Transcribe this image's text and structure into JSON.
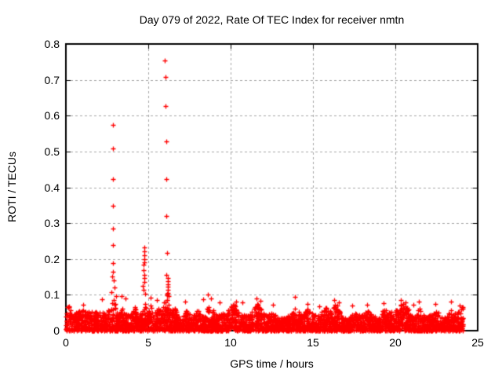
{
  "figure": {
    "background": "#ffffff",
    "text_color": "#000000"
  },
  "chart_data": {
    "type": "scatter",
    "title": "Day 079 of 2022, Rate Of TEC Index for receiver nmtn",
    "xlabel": "GPS time / hours",
    "ylabel": "ROTI / TECUs",
    "xlim": [
      0,
      25
    ],
    "ylim": [
      0,
      0.8
    ],
    "xtick_values": [
      0,
      5,
      10,
      15,
      20,
      25
    ],
    "xtick_labels": [
      "0",
      "5",
      "10",
      "15",
      "20",
      "25"
    ],
    "ytick_values": [
      0,
      0.1,
      0.2,
      0.3,
      0.4,
      0.5,
      0.6,
      0.7,
      0.8
    ],
    "ytick_labels": [
      "0",
      "0.1",
      "0.2",
      "0.3",
      "0.4",
      "0.5",
      "0.6",
      "0.7",
      "0.8"
    ],
    "grid": {
      "show": true,
      "color": "#a6a6a6",
      "dash": [
        3,
        3
      ]
    },
    "frame_color": "#000000",
    "tick_length": 6,
    "marker": {
      "shape": "plus",
      "size": 7,
      "color": "#ff0000"
    },
    "series_name": "ROTI",
    "spike_points": [
      [
        2.86,
        0.574
      ],
      [
        2.86,
        0.509
      ],
      [
        2.86,
        0.424
      ],
      [
        2.87,
        0.348
      ],
      [
        2.87,
        0.285
      ],
      [
        2.86,
        0.239
      ],
      [
        2.87,
        0.188
      ],
      [
        2.86,
        0.165
      ],
      [
        2.8,
        0.152
      ],
      [
        2.9,
        0.14
      ],
      [
        2.96,
        0.12
      ],
      [
        2.76,
        0.108
      ],
      [
        3.04,
        0.097
      ],
      [
        4.74,
        0.233
      ],
      [
        4.74,
        0.222
      ],
      [
        4.74,
        0.211
      ],
      [
        4.75,
        0.2
      ],
      [
        4.74,
        0.191
      ],
      [
        4.7,
        0.185
      ],
      [
        4.73,
        0.168
      ],
      [
        4.74,
        0.156
      ],
      [
        4.75,
        0.147
      ],
      [
        4.74,
        0.136
      ],
      [
        4.67,
        0.124
      ],
      [
        4.73,
        0.113
      ],
      [
        4.8,
        0.104
      ],
      [
        6.0,
        0.755
      ],
      [
        6.05,
        0.707
      ],
      [
        6.05,
        0.627
      ],
      [
        6.08,
        0.529
      ],
      [
        6.08,
        0.423
      ],
      [
        6.08,
        0.32
      ],
      [
        6.13,
        0.216
      ],
      [
        6.1,
        0.155
      ],
      [
        6.19,
        0.146
      ],
      [
        6.19,
        0.138
      ],
      [
        6.2,
        0.13
      ],
      [
        6.19,
        0.122
      ],
      [
        6.18,
        0.114
      ],
      [
        6.2,
        0.106
      ],
      [
        6.22,
        0.097
      ],
      [
        0.15,
        0.066
      ],
      [
        1.05,
        0.072
      ],
      [
        2.2,
        0.088
      ],
      [
        3.4,
        0.096
      ],
      [
        3.62,
        0.09
      ],
      [
        5.15,
        0.092
      ],
      [
        5.5,
        0.085
      ],
      [
        7.25,
        0.082
      ],
      [
        8.35,
        0.088
      ],
      [
        8.62,
        0.1
      ],
      [
        8.8,
        0.09
      ],
      [
        9.35,
        0.078
      ],
      [
        10.35,
        0.082
      ],
      [
        10.7,
        0.078
      ],
      [
        11.55,
        0.09
      ],
      [
        11.8,
        0.084
      ],
      [
        12.55,
        0.072
      ],
      [
        13.9,
        0.095
      ],
      [
        14.65,
        0.075
      ],
      [
        15.4,
        0.068
      ],
      [
        16.3,
        0.085
      ],
      [
        16.55,
        0.08
      ],
      [
        17.4,
        0.07
      ],
      [
        18.3,
        0.072
      ],
      [
        19.3,
        0.076
      ],
      [
        20.35,
        0.085
      ],
      [
        20.6,
        0.078
      ],
      [
        21.1,
        0.073
      ],
      [
        21.45,
        0.081
      ],
      [
        22.43,
        0.075
      ],
      [
        23.38,
        0.082
      ],
      [
        23.9,
        0.07
      ],
      [
        24.05,
        0.065
      ]
    ],
    "baseline_noise": {
      "description": "Dense band of ROTI samples between 0 and ~0.06 TECUs across 0-24.1 h with locally enhanced activity near 2.9, 4.7, 6.1, 8.6, 11.6, 16.4 and 20.5 h",
      "n_points": 3600,
      "x_range": [
        0,
        24.12
      ],
      "value_exponent": 1.55,
      "envelope_base": 0.045,
      "envelope_min": 0.03,
      "seed": 79,
      "wiggles": [
        {
          "amp": 0.006,
          "freq": 1.3,
          "phase": 0.7
        },
        {
          "amp": 0.005,
          "freq": 3.1,
          "phase": 2.1
        }
      ],
      "bumps": [
        {
          "x": 0.15,
          "amp": 0.018,
          "w": 0.1
        },
        {
          "x": 1.0,
          "amp": 0.012,
          "w": 0.25
        },
        {
          "x": 2.05,
          "amp": 0.008,
          "w": 0.2
        },
        {
          "x": 2.55,
          "amp": 0.02,
          "w": 0.15
        },
        {
          "x": 2.9,
          "amp": 0.055,
          "w": 0.12
        },
        {
          "x": 3.4,
          "amp": 0.022,
          "w": 0.12
        },
        {
          "x": 4.2,
          "amp": 0.02,
          "w": 0.1
        },
        {
          "x": 4.75,
          "amp": 0.04,
          "w": 0.1
        },
        {
          "x": 5.15,
          "amp": 0.025,
          "w": 0.12
        },
        {
          "x": 5.55,
          "amp": 0.02,
          "w": 0.1
        },
        {
          "x": 6.08,
          "amp": 0.055,
          "w": 0.12
        },
        {
          "x": 6.6,
          "amp": 0.022,
          "w": 0.12
        },
        {
          "x": 7.3,
          "amp": 0.02,
          "w": 0.12
        },
        {
          "x": 8.0,
          "amp": 0.018,
          "w": 0.1
        },
        {
          "x": 8.6,
          "amp": 0.035,
          "w": 0.1
        },
        {
          "x": 9.0,
          "amp": 0.02,
          "w": 0.1
        },
        {
          "x": 10.2,
          "amp": 0.022,
          "w": 0.2
        },
        {
          "x": 11.6,
          "amp": 0.028,
          "w": 0.2
        },
        {
          "x": 12.6,
          "amp": 0.015,
          "w": 0.15
        },
        {
          "x": 13.9,
          "amp": 0.022,
          "w": 0.1
        },
        {
          "x": 14.7,
          "amp": 0.015,
          "w": 0.12
        },
        {
          "x": 15.8,
          "amp": 0.012,
          "w": 0.15
        },
        {
          "x": 16.4,
          "amp": 0.026,
          "w": 0.18
        },
        {
          "x": 17.5,
          "amp": 0.012,
          "w": 0.15
        },
        {
          "x": 18.3,
          "amp": 0.015,
          "w": 0.12
        },
        {
          "x": 19.3,
          "amp": 0.018,
          "w": 0.12
        },
        {
          "x": 20.5,
          "amp": 0.026,
          "w": 0.25
        },
        {
          "x": 21.4,
          "amp": 0.022,
          "w": 0.15
        },
        {
          "x": 22.5,
          "amp": 0.015,
          "w": 0.15
        },
        {
          "x": 23.4,
          "amp": 0.02,
          "w": 0.15
        },
        {
          "x": 24.0,
          "amp": 0.018,
          "w": 0.12
        }
      ]
    }
  }
}
